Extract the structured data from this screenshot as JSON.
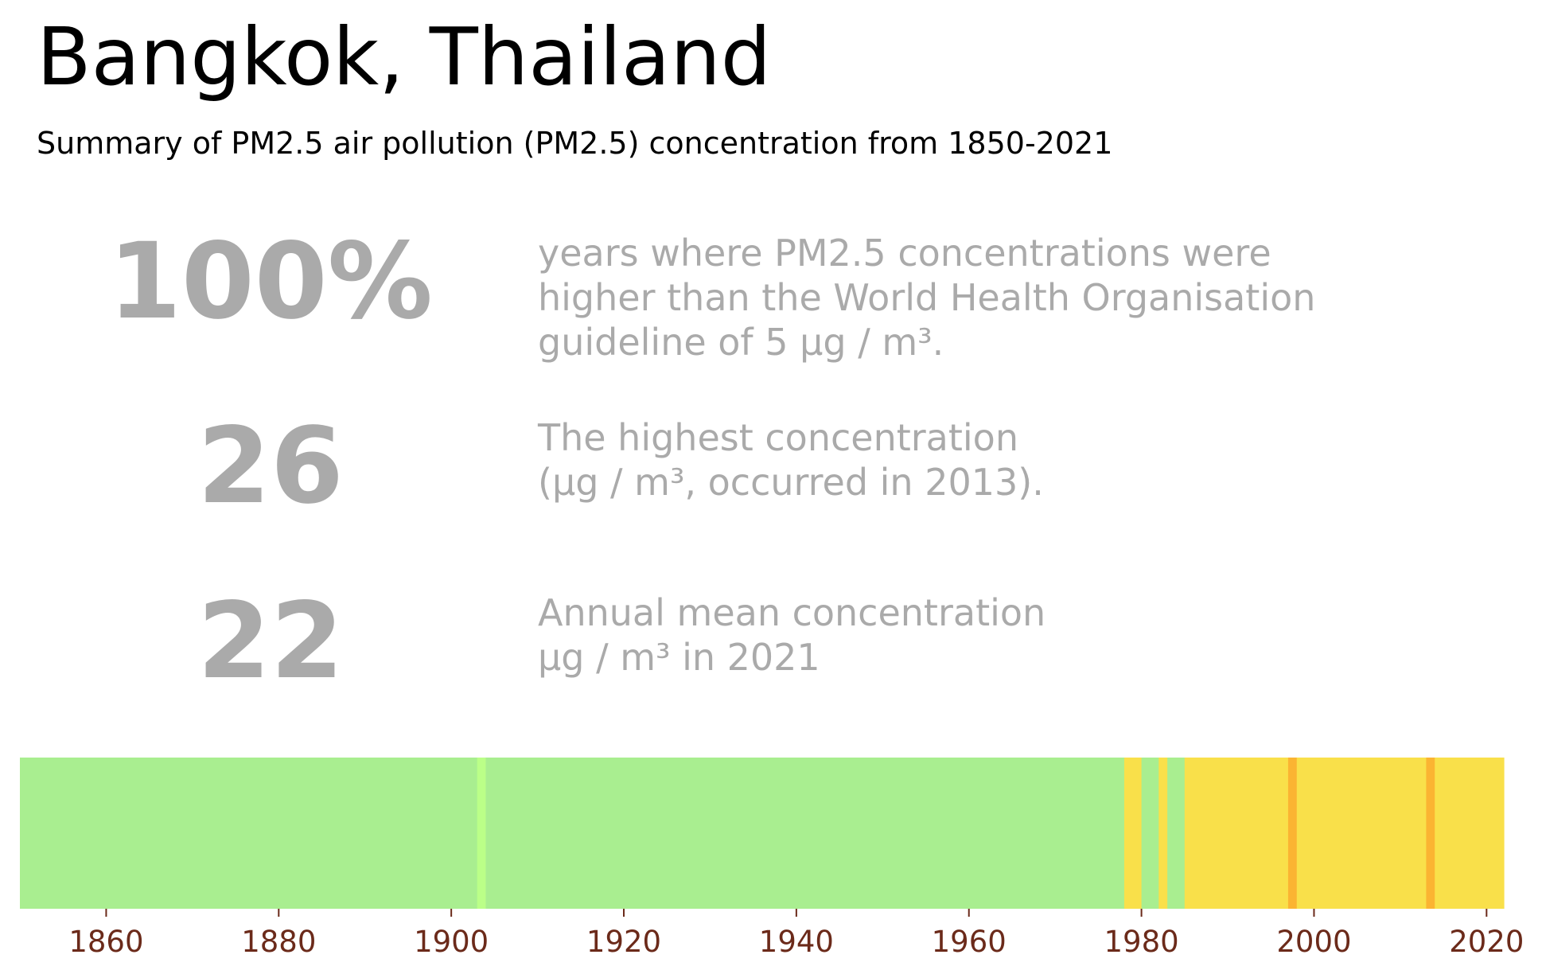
{
  "header": {
    "title": "Bangkok, Thailand",
    "subtitle": "Summary of PM2.5 air pollution (PM2.5) concentration from 1850-2021"
  },
  "stats": [
    {
      "value": "100%",
      "description": "years where PM2.5 concentrations were\nhigher than the World Health Organisation\nguideline of 5 µg / m³."
    },
    {
      "value": "26",
      "description": "The highest concentration\n(µg / m³, occurred in 2013)."
    },
    {
      "value": "22",
      "description": "Annual mean concentration\nµg / m³ in 2021"
    }
  ],
  "colors": {
    "stat_text": "#aaaaaa",
    "tick_label": "#6b2a1a",
    "low": "#a9ee90",
    "low_light": "#bbff88",
    "moderate": "#f9e04a",
    "high": "#fbb432"
  },
  "chart_data": {
    "type": "heatmap",
    "xlim": [
      1850,
      2022
    ],
    "x_ticks": [
      1860,
      1880,
      1900,
      1920,
      1940,
      1960,
      1980,
      2000,
      2020
    ],
    "bands": [
      {
        "start": 1850,
        "end": 1903,
        "level": "low"
      },
      {
        "start": 1903,
        "end": 1904,
        "level": "low_light"
      },
      {
        "start": 1904,
        "end": 1978,
        "level": "low"
      },
      {
        "start": 1978,
        "end": 1980,
        "level": "moderate"
      },
      {
        "start": 1980,
        "end": 1982,
        "level": "low"
      },
      {
        "start": 1982,
        "end": 1983,
        "level": "moderate"
      },
      {
        "start": 1983,
        "end": 1985,
        "level": "low"
      },
      {
        "start": 1985,
        "end": 1997,
        "level": "moderate"
      },
      {
        "start": 1997,
        "end": 1998,
        "level": "high"
      },
      {
        "start": 1998,
        "end": 2013,
        "level": "moderate"
      },
      {
        "start": 2013,
        "end": 2014,
        "level": "high"
      },
      {
        "start": 2014,
        "end": 2022,
        "level": "moderate"
      }
    ]
  }
}
